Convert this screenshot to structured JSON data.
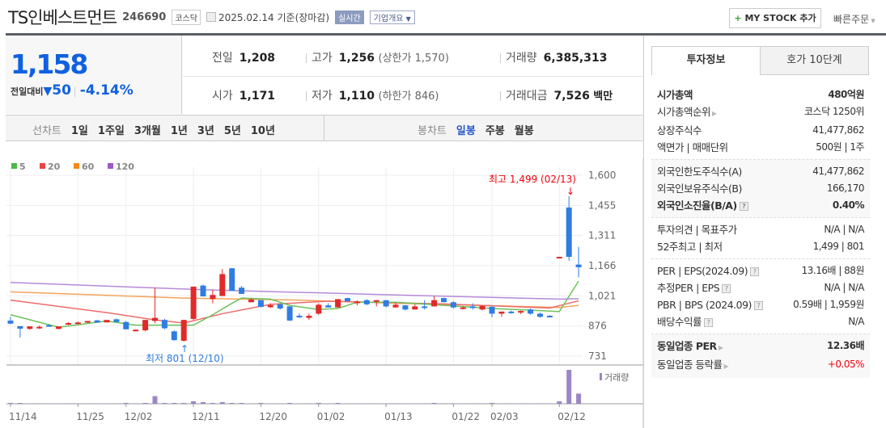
{
  "header": {
    "title": "TS인베스트먼트",
    "code": "246690",
    "market": "코스닥",
    "date": "2025.02.14 기준(장마감)",
    "realtime": "실시간",
    "corp_info": "기업개요",
    "my_stock": "MY STOCK 추가",
    "quick_order": "빠른주문"
  },
  "price": {
    "current": "1,158",
    "diff_label": "전일대비",
    "diff": "50",
    "rate": "-4.14%"
  },
  "stats": {
    "prev_label": "전일",
    "prev": "1,208",
    "high_label": "고가",
    "high": "1,256",
    "upper_limit": "(상한가 1,570)",
    "volume_label": "거래량",
    "volume": "6,385,313",
    "open_label": "시가",
    "open": "1,171",
    "low_label": "저가",
    "low": "1,110",
    "lower_limit": "(하한가 846)",
    "amount_label": "거래대금",
    "amount": "7,526",
    "amount_unit": "백만"
  },
  "chart_tabs": {
    "line_label": "선차트",
    "line": [
      "1일",
      "1주일",
      "3개월",
      "1년",
      "3년",
      "5년",
      "10년"
    ],
    "candle_label": "봉차트",
    "candle": [
      "일봉",
      "주봉",
      "월봉"
    ],
    "active_candle": "일봉"
  },
  "side_tabs": [
    "투자정보",
    "호가 10단계"
  ],
  "info": {
    "g1": [
      {
        "k": "시가총액",
        "v": "480억원",
        "bold": true
      },
      {
        "k": "시가총액순위",
        "v": "코스닥 1250위",
        "arrow": true
      },
      {
        "k": "상장주식수",
        "v": "41,477,862"
      },
      {
        "k": "액면가 | 매매단위",
        "v": "500원 | 1주"
      }
    ],
    "g2": [
      {
        "k": "외국인한도주식수(A)",
        "v": "41,477,862"
      },
      {
        "k": "외국인보유주식수(B)",
        "v": "166,170"
      },
      {
        "k": "외국인소진율(B/A)",
        "v": "0.40%",
        "bold": true,
        "help": true
      }
    ],
    "g3": [
      {
        "k": "투자의견 | 목표주가",
        "v": "N/A | N/A"
      },
      {
        "k": "52주최고 | 최저",
        "v": "1,499 | 801"
      }
    ],
    "g4": [
      {
        "k": "PER | EPS(2024.09)",
        "v": "13.16배 | 88원",
        "help": true
      },
      {
        "k": "추정PER | EPS",
        "v": "N/A | N/A",
        "help": true
      },
      {
        "k": "PBR | BPS (2024.09)",
        "v": "0.59배 | 1,959원",
        "help": true
      },
      {
        "k": "배당수익률",
        "v": "N/A",
        "help": true
      }
    ],
    "g5": [
      {
        "k": "동일업종 PER",
        "v": "12.36배",
        "bold": true,
        "arrow": true
      },
      {
        "k": "동일업종 등락률",
        "v": "+0.05%",
        "arrow": true,
        "red": true
      }
    ]
  },
  "chart_data": {
    "type": "candlestick",
    "legend": [
      {
        "name": "5",
        "color": "#4cb847"
      },
      {
        "name": "20",
        "color": "#e84545"
      },
      {
        "name": "60",
        "color": "#f28a1e"
      },
      {
        "name": "120",
        "color": "#9b59c9"
      }
    ],
    "y_ticks": [
      "1,600",
      "1,455",
      "1,311",
      "1,166",
      "1,021",
      "876",
      "731"
    ],
    "y_tick_values": [
      1600,
      1455,
      1311,
      1166,
      1021,
      876,
      731
    ],
    "ylim": [
      731,
      1600
    ],
    "x_ticks": [
      {
        "i": 0,
        "label": "11/14"
      },
      {
        "i": 7,
        "label": "11/25"
      },
      {
        "i": 12,
        "label": "12/02"
      },
      {
        "i": 19,
        "label": "12/11"
      },
      {
        "i": 26,
        "label": "12/20"
      },
      {
        "i": 32,
        "label": "01/02"
      },
      {
        "i": 39,
        "label": "01/13"
      },
      {
        "i": 46,
        "label": "01/22"
      },
      {
        "i": 50,
        "label": "02/03"
      },
      {
        "i": 57,
        "label": "02/12"
      }
    ],
    "ohlc": [
      [
        902,
        920,
        885,
        887
      ],
      [
        875,
        875,
        820,
        863
      ],
      [
        862,
        870,
        858,
        874
      ],
      [
        870,
        878,
        862,
        872
      ],
      [
        880,
        885,
        872,
        878
      ],
      [
        862,
        870,
        860,
        874
      ],
      [
        885,
        895,
        880,
        890
      ],
      [
        890,
        897,
        885,
        893
      ],
      [
        895,
        898,
        890,
        900
      ],
      [
        903,
        905,
        892,
        892
      ],
      [
        893,
        903,
        893,
        905
      ],
      [
        908,
        912,
        893,
        895
      ],
      [
        895,
        900,
        860,
        860
      ],
      [
        855,
        860,
        850,
        858
      ],
      [
        855,
        905,
        850,
        905
      ],
      [
        900,
        1061,
        890,
        915
      ],
      [
        905,
        910,
        860,
        865
      ],
      [
        850,
        855,
        805,
        808
      ],
      [
        805,
        905,
        801,
        905
      ],
      [
        910,
        1065,
        905,
        1065
      ],
      [
        1070,
        1075,
        1020,
        1018
      ],
      [
        1005,
        1050,
        985,
        1025
      ],
      [
        1020,
        1150,
        1020,
        1125
      ],
      [
        1153,
        1155,
        1045,
        1045
      ],
      [
        1060,
        1068,
        1030,
        1030
      ],
      [
        990,
        1010,
        990,
        1003
      ],
      [
        1000,
        1000,
        965,
        968
      ],
      [
        966,
        985,
        962,
        976
      ],
      [
        980,
        985,
        955,
        960
      ],
      [
        970,
        972,
        900,
        902
      ],
      [
        925,
        935,
        915,
        920
      ],
      [
        915,
        935,
        905,
        925
      ],
      [
        935,
        985,
        930,
        978
      ],
      [
        975,
        985,
        965,
        965
      ],
      [
        965,
        1005,
        965,
        1005
      ],
      [
        1010,
        1012,
        990,
        995
      ],
      [
        990,
        1000,
        975,
        993
      ],
      [
        1000,
        1005,
        975,
        980
      ],
      [
        995,
        1000,
        970,
        1000
      ],
      [
        1000,
        1000,
        965,
        970
      ],
      [
        965,
        985,
        963,
        978
      ],
      [
        975,
        977,
        950,
        955
      ],
      [
        955,
        980,
        955,
        970
      ],
      [
        970,
        1000,
        955,
        968
      ],
      [
        970,
        1020,
        970,
        1000
      ],
      [
        1010,
        1012,
        990,
        990
      ],
      [
        990,
        995,
        960,
        965
      ],
      [
        960,
        970,
        955,
        965
      ],
      [
        970,
        985,
        955,
        965
      ],
      [
        955,
        975,
        950,
        972
      ],
      [
        968,
        970,
        918,
        935
      ],
      [
        935,
        945,
        920,
        945
      ],
      [
        945,
        950,
        935,
        940
      ],
      [
        947,
        950,
        933,
        948
      ],
      [
        955,
        960,
        930,
        935
      ],
      [
        935,
        940,
        915,
        920
      ],
      [
        925,
        928,
        918,
        920
      ],
      [
        1203,
        1208,
        1203,
        1208
      ],
      [
        1445,
        1499,
        1189,
        1208
      ],
      [
        1171,
        1256,
        1110,
        1158
      ]
    ],
    "ma5": [
      [
        0,
        930
      ],
      [
        5,
        870
      ],
      [
        10,
        900
      ],
      [
        13,
        880
      ],
      [
        17,
        880
      ],
      [
        19,
        880
      ],
      [
        21,
        930
      ],
      [
        23,
        985
      ],
      [
        24,
        1010
      ],
      [
        27,
        1005
      ],
      [
        29,
        975
      ],
      [
        32,
        955
      ],
      [
        34,
        960
      ],
      [
        36,
        990
      ],
      [
        40,
        990
      ],
      [
        45,
        975
      ],
      [
        50,
        960
      ],
      [
        55,
        950
      ],
      [
        57,
        945
      ],
      [
        59,
        1092
      ]
    ],
    "ma20": [
      [
        0,
        1000
      ],
      [
        10,
        940
      ],
      [
        15,
        905
      ],
      [
        18,
        890
      ],
      [
        22,
        935
      ],
      [
        27,
        980
      ],
      [
        33,
        995
      ],
      [
        45,
        982
      ],
      [
        56,
        962
      ],
      [
        59,
        997
      ]
    ],
    "ma60": [
      [
        0,
        1040
      ],
      [
        18,
        1010
      ],
      [
        30,
        1000
      ],
      [
        40,
        985
      ],
      [
        57,
        965
      ],
      [
        59,
        975
      ]
    ],
    "ma120": [
      [
        0,
        1085
      ],
      [
        20,
        1050
      ],
      [
        40,
        1025
      ],
      [
        57,
        1005
      ],
      [
        59,
        1007
      ]
    ],
    "volume_label": "거래량",
    "volume_relative": [
      1,
      1,
      0.5,
      0.5,
      0.5,
      0.5,
      0.5,
      0.5,
      0.5,
      0.5,
      0.5,
      0.5,
      1,
      0.5,
      1,
      9,
      1,
      1,
      1,
      3,
      2,
      1,
      2,
      1,
      1,
      0.5,
      1,
      0.5,
      0.5,
      1,
      0.5,
      0.5,
      1,
      0.5,
      1,
      0.5,
      0.5,
      0.5,
      0.5,
      0.5,
      0.5,
      0.5,
      0.5,
      0.5,
      1,
      0.5,
      0.5,
      0.5,
      0.5,
      0.5,
      1,
      0.5,
      0.5,
      0.5,
      0.5,
      0.5,
      0.5,
      3,
      40,
      12
    ],
    "annotations": {
      "high": "최고 1,499 (02/13)",
      "low": "최저 801 (12/10)"
    }
  }
}
